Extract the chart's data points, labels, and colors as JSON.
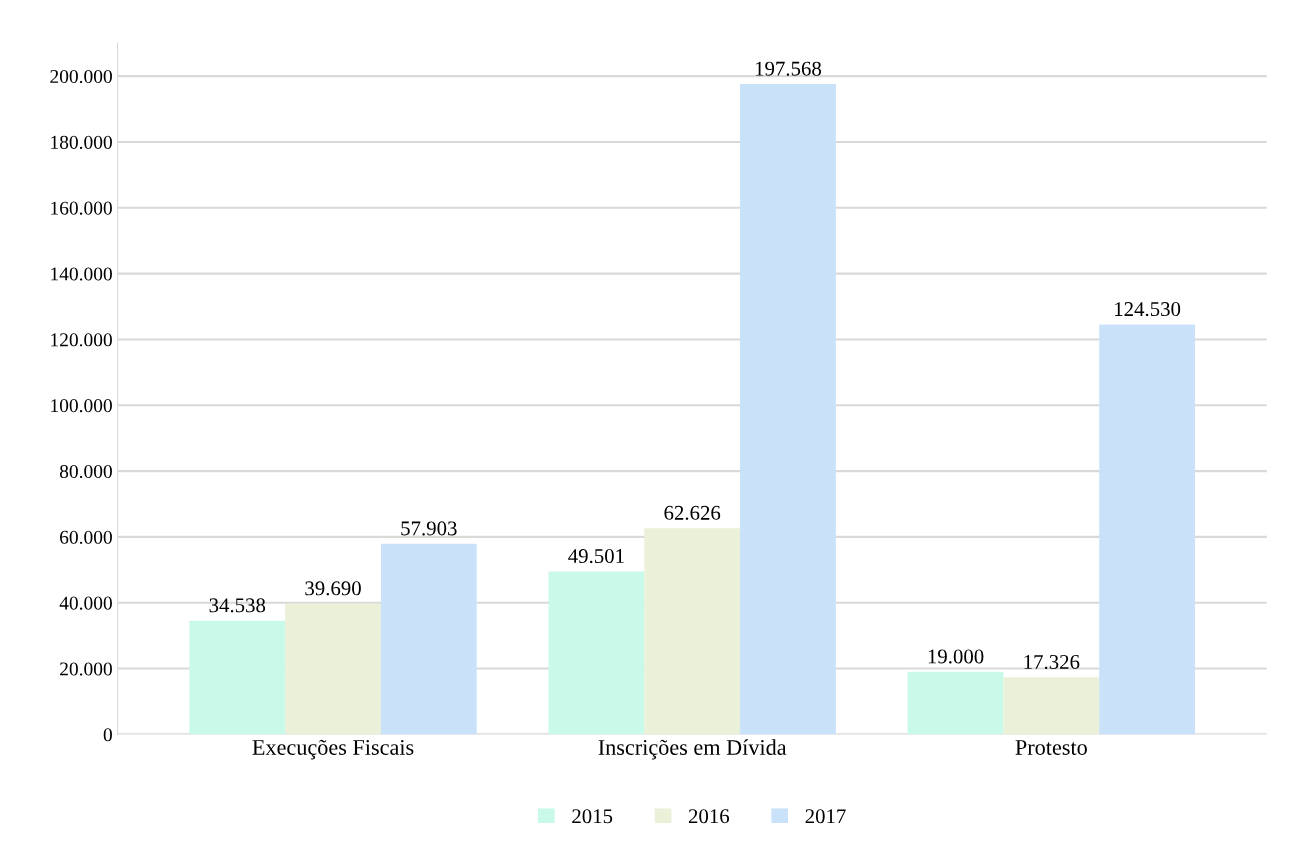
{
  "chart_data": {
    "type": "bar",
    "categories": [
      "Execuções Fiscais",
      "Inscrições em Dívida",
      "Protesto"
    ],
    "series": [
      {
        "name": "2015",
        "color": "#c9f9e9",
        "values": [
          34538,
          49501,
          19000
        ],
        "value_labels": [
          "34.538",
          "49.501",
          "19.000"
        ]
      },
      {
        "name": "2016",
        "color": "#ebf0d9",
        "values": [
          39690,
          62626,
          17326
        ],
        "value_labels": [
          "39.690",
          "62.626",
          "17.326"
        ]
      },
      {
        "name": "2017",
        "color": "#c9e1f9",
        "values": [
          57903,
          197568,
          124530
        ],
        "value_labels": [
          "57.903",
          "197.568",
          "124.530"
        ]
      }
    ],
    "ylim": [
      0,
      210000
    ],
    "yticks": [
      {
        "value": 0,
        "label": "0"
      },
      {
        "value": 20000,
        "label": "20.000"
      },
      {
        "value": 40000,
        "label": "40.000"
      },
      {
        "value": 60000,
        "label": "60.000"
      },
      {
        "value": 80000,
        "label": "80.000"
      },
      {
        "value": 100000,
        "label": "100.000"
      },
      {
        "value": 120000,
        "label": "120.000"
      },
      {
        "value": 140000,
        "label": "140.000"
      },
      {
        "value": 160000,
        "label": "160.000"
      },
      {
        "value": 180000,
        "label": "180.000"
      },
      {
        "value": 200000,
        "label": "200.000"
      }
    ],
    "grid": "y",
    "legend": "bottom"
  }
}
